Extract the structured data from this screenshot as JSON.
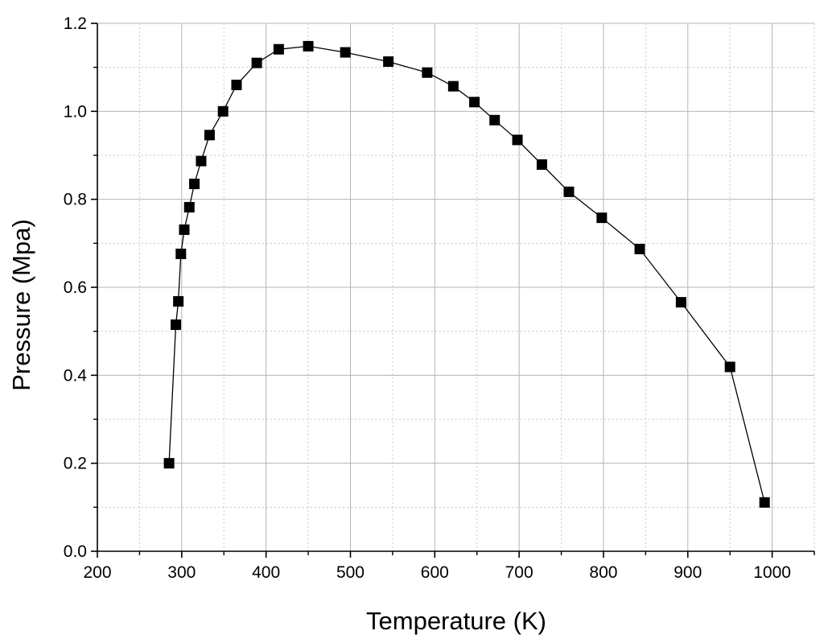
{
  "chart_data": {
    "type": "line",
    "title": "",
    "xlabel": "Temperature (K)",
    "ylabel": "Pressure (Mpa)",
    "xlim": [
      200,
      1050
    ],
    "ylim": [
      0.0,
      1.2
    ],
    "x_ticks": [
      200,
      300,
      400,
      500,
      600,
      700,
      800,
      900,
      1000
    ],
    "x_tick_labels": [
      "200",
      "300",
      "400",
      "500",
      "600",
      "700",
      "800",
      "900",
      "1000"
    ],
    "y_ticks": [
      0.0,
      0.2,
      0.4,
      0.6,
      0.8,
      1.0,
      1.2
    ],
    "y_tick_labels": [
      "0.0",
      "0.2",
      "0.4",
      "0.6",
      "0.8",
      "1.0",
      "1.2"
    ],
    "grid": true,
    "minor_grid": true,
    "marker": "square",
    "color": "#000000",
    "series": [
      {
        "name": "",
        "x": [
          285,
          293,
          296,
          299,
          303,
          309,
          315,
          323,
          333,
          349,
          365,
          389,
          415,
          450,
          494,
          545,
          591,
          622,
          647,
          671,
          698,
          727,
          759,
          798,
          843,
          892,
          950,
          991
        ],
        "y": [
          0.2,
          0.515,
          0.568,
          0.676,
          0.731,
          0.782,
          0.835,
          0.887,
          0.946,
          1.0,
          1.06,
          1.11,
          1.141,
          1.148,
          1.134,
          1.113,
          1.088,
          1.057,
          1.021,
          0.98,
          0.935,
          0.879,
          0.817,
          0.758,
          0.687,
          0.566,
          0.419,
          0.111
        ]
      }
    ]
  }
}
